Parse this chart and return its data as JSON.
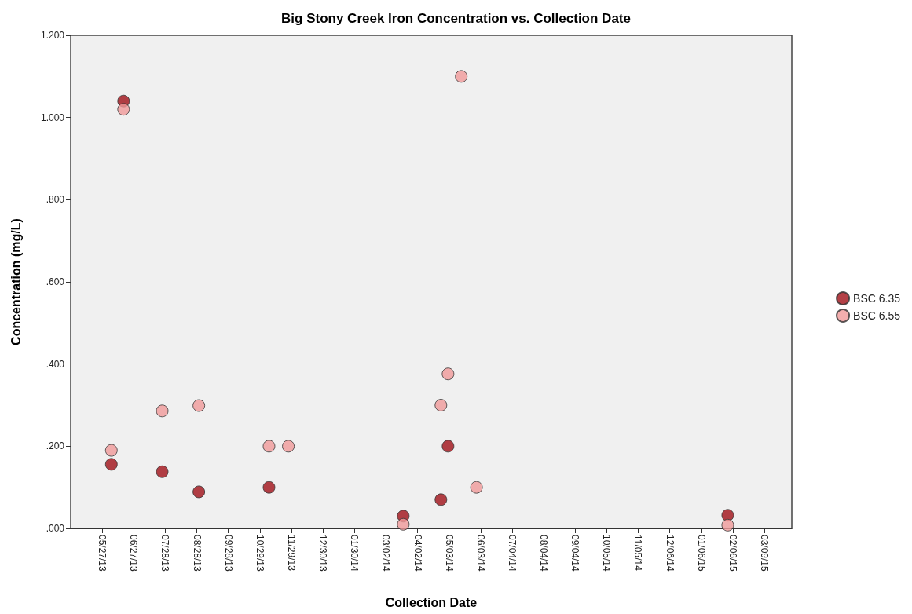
{
  "chart_data": {
    "type": "scatter",
    "title": "Big Stony Creek Iron Concentration vs. Collection Date",
    "xlabel": "Collection Date",
    "ylabel": "Concentration (mg/L)",
    "series": [
      {
        "name": "BSC 6.35",
        "color": "#a01018",
        "x": [
          "2013-06-05",
          "2013-06-17",
          "2013-07-25",
          "2013-08-30",
          "2013-11-07",
          "2014-03-19",
          "2014-04-25",
          "2014-05-02",
          "2015-02-01"
        ],
        "values": [
          0.156,
          1.04,
          0.138,
          0.089,
          0.1,
          0.03,
          0.07,
          0.2,
          0.032
        ]
      },
      {
        "name": "BSC 6.55",
        "color": "#f09a9a",
        "x": [
          "2013-06-05",
          "2013-06-17",
          "2013-07-25",
          "2013-08-30",
          "2013-11-07",
          "2013-11-26",
          "2014-03-19",
          "2014-04-25",
          "2014-05-02",
          "2014-05-15",
          "2014-05-30",
          "2015-02-01"
        ],
        "values": [
          0.19,
          1.02,
          0.286,
          0.299,
          0.2,
          0.2,
          0.01,
          0.3,
          0.376,
          1.1,
          0.1,
          0.008
        ]
      }
    ],
    "xlim": [
      "2013-04-26",
      "2015-04-05"
    ],
    "xticks": [
      {
        "value": "2013-05-27",
        "label": "05/27/13"
      },
      {
        "value": "2013-06-27",
        "label": "06/27/13"
      },
      {
        "value": "2013-07-28",
        "label": "07/28/13"
      },
      {
        "value": "2013-08-28",
        "label": "08/28/13"
      },
      {
        "value": "2013-09-28",
        "label": "09/28/13"
      },
      {
        "value": "2013-10-29",
        "label": "10/29/13"
      },
      {
        "value": "2013-11-29",
        "label": "11/29/13"
      },
      {
        "value": "2013-12-30",
        "label": "12/30/13"
      },
      {
        "value": "2014-01-30",
        "label": "01/30/14"
      },
      {
        "value": "2014-03-02",
        "label": "03/02/14"
      },
      {
        "value": "2014-04-02",
        "label": "04/02/14"
      },
      {
        "value": "2014-05-03",
        "label": "05/03/14"
      },
      {
        "value": "2014-06-03",
        "label": "06/03/14"
      },
      {
        "value": "2014-07-04",
        "label": "07/04/14"
      },
      {
        "value": "2014-08-04",
        "label": "08/04/14"
      },
      {
        "value": "2014-09-04",
        "label": "09/04/14"
      },
      {
        "value": "2014-10-05",
        "label": "10/05/14"
      },
      {
        "value": "2014-11-05",
        "label": "11/05/14"
      },
      {
        "value": "2014-12-06",
        "label": "12/06/14"
      },
      {
        "value": "2015-01-06",
        "label": "01/06/15"
      },
      {
        "value": "2015-02-06",
        "label": "02/06/15"
      },
      {
        "value": "2015-03-09",
        "label": "03/09/15"
      }
    ],
    "ylim": [
      0,
      1.2
    ],
    "yticks": [
      {
        "value": 0,
        "label": ".000"
      },
      {
        "value": 0.2,
        "label": ".200"
      },
      {
        "value": 0.4,
        "label": ".400"
      },
      {
        "value": 0.6,
        "label": ".600"
      },
      {
        "value": 0.8,
        "label": ".800"
      },
      {
        "value": 1,
        "label": "1.000"
      },
      {
        "value": 1.2,
        "label": "1.200"
      }
    ],
    "grid": false,
    "legend": "right",
    "marker": "circle"
  }
}
